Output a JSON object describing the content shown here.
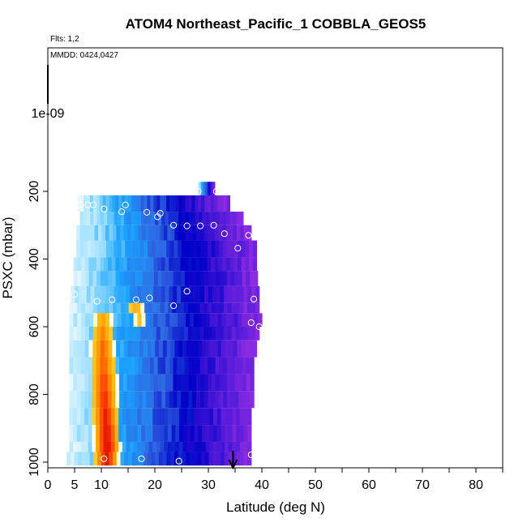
{
  "chart_data": {
    "type": "heatmap",
    "title": "ATOM4 Northeast_Pacific_1 COBBLA_GEOS5",
    "flights_note": "Flts: 1,2",
    "dates_note": "MMDD: 0424,0427",
    "xlabel": "Latitude (deg N)",
    "ylabel": "PSXC (mbar)",
    "xlim": [
      0,
      85
    ],
    "ylim": [
      1010,
      165
    ],
    "x_ticks": [
      0,
      5,
      10,
      20,
      30,
      40,
      50,
      60,
      70,
      80
    ],
    "y_ticks": [
      200,
      400,
      600,
      800,
      1000
    ],
    "y_tick_labels": [
      "200",
      "400",
      "600",
      "800",
      "1000"
    ],
    "top_tick_label": "1e-09",
    "arrow_latitude": 34.6,
    "colormap": [
      "#ffffff",
      "#9ee0ff",
      "#1aa3ff",
      "#2f64e0",
      "#0000c8",
      "#4b18d8",
      "#8a2be2"
    ],
    "hot_colormap": [
      "#ffe94d",
      "#ffa200",
      "#ff3b00",
      "#d40000"
    ],
    "rows": [
      {
        "p_top": 172,
        "p_bot": 212,
        "lat_start": 28.0,
        "lat_end": 31.2,
        "hot": []
      },
      {
        "p_top": 212,
        "p_bot": 260,
        "lat_start": 5.5,
        "lat_end": 34.0,
        "hot": []
      },
      {
        "p_top": 260,
        "p_bot": 300,
        "lat_start": 6.0,
        "lat_end": 36.5,
        "hot": []
      },
      {
        "p_top": 300,
        "p_bot": 345,
        "lat_start": 5.3,
        "lat_end": 38.0,
        "hot": []
      },
      {
        "p_top": 345,
        "p_bot": 395,
        "lat_start": 5.3,
        "lat_end": 39.0,
        "hot": []
      },
      {
        "p_top": 395,
        "p_bot": 435,
        "lat_start": 4.8,
        "lat_end": 39.0,
        "hot": []
      },
      {
        "p_top": 435,
        "p_bot": 480,
        "lat_start": 4.8,
        "lat_end": 39.2,
        "hot": []
      },
      {
        "p_top": 480,
        "p_bot": 530,
        "lat_start": 4.3,
        "lat_end": 39.5,
        "hot": []
      },
      {
        "p_top": 530,
        "p_bot": 560,
        "lat_start": 4.0,
        "lat_end": 39.5,
        "hot": [
          {
            "lat": 16.5,
            "w": 1.8,
            "v": 0.3
          }
        ]
      },
      {
        "p_top": 560,
        "p_bot": 600,
        "lat_start": 4.0,
        "lat_end": 40.0,
        "hot": [
          {
            "lat": 10.2,
            "w": 2.0,
            "v": 0.35
          },
          {
            "lat": 17.0,
            "w": 1.5,
            "v": 0.2
          }
        ]
      },
      {
        "p_top": 600,
        "p_bot": 640,
        "lat_start": 4.0,
        "lat_end": 39.5,
        "hot": [
          {
            "lat": 10.2,
            "w": 2.2,
            "v": 0.45
          }
        ]
      },
      {
        "p_top": 640,
        "p_bot": 690,
        "lat_start": 4.0,
        "lat_end": 39.0,
        "hot": [
          {
            "lat": 10.3,
            "w": 2.4,
            "v": 0.55
          }
        ]
      },
      {
        "p_top": 690,
        "p_bot": 740,
        "lat_start": 4.0,
        "lat_end": 38.5,
        "hot": [
          {
            "lat": 10.4,
            "w": 2.5,
            "v": 0.6
          }
        ]
      },
      {
        "p_top": 740,
        "p_bot": 790,
        "lat_start": 4.0,
        "lat_end": 38.5,
        "hot": [
          {
            "lat": 10.5,
            "w": 2.6,
            "v": 0.7
          }
        ]
      },
      {
        "p_top": 790,
        "p_bot": 840,
        "lat_start": 4.0,
        "lat_end": 38.5,
        "hot": [
          {
            "lat": 10.6,
            "w": 2.6,
            "v": 0.78
          }
        ]
      },
      {
        "p_top": 840,
        "p_bot": 890,
        "lat_start": 4.0,
        "lat_end": 38.0,
        "hot": [
          {
            "lat": 10.8,
            "w": 2.6,
            "v": 0.86
          }
        ]
      },
      {
        "p_top": 890,
        "p_bot": 940,
        "lat_start": 4.0,
        "lat_end": 38.0,
        "hot": [
          {
            "lat": 11.0,
            "w": 2.6,
            "v": 0.95
          }
        ]
      },
      {
        "p_top": 940,
        "p_bot": 970,
        "lat_start": 4.0,
        "lat_end": 38.0,
        "hot": [
          {
            "lat": 11.1,
            "w": 2.6,
            "v": 1.0
          }
        ]
      },
      {
        "p_top": 970,
        "p_bot": 1010,
        "lat_start": 3.5,
        "lat_end": 38.0,
        "hot": [
          {
            "lat": 11.0,
            "w": 2.5,
            "v": 0.9
          }
        ]
      }
    ],
    "sample_points": [
      {
        "lat": 28.1,
        "p": 200
      },
      {
        "lat": 31.5,
        "p": 200
      },
      {
        "lat": 6.0,
        "p": 240
      },
      {
        "lat": 7.5,
        "p": 240
      },
      {
        "lat": 8.5,
        "p": 240
      },
      {
        "lat": 14.5,
        "p": 240
      },
      {
        "lat": 10.5,
        "p": 252
      },
      {
        "lat": 13.8,
        "p": 260
      },
      {
        "lat": 18.5,
        "p": 262
      },
      {
        "lat": 21.0,
        "p": 265
      },
      {
        "lat": 20.5,
        "p": 275
      },
      {
        "lat": 23.5,
        "p": 300
      },
      {
        "lat": 26.0,
        "p": 302
      },
      {
        "lat": 28.5,
        "p": 302
      },
      {
        "lat": 31.0,
        "p": 300
      },
      {
        "lat": 33.0,
        "p": 325
      },
      {
        "lat": 37.5,
        "p": 330
      },
      {
        "lat": 39.5,
        "p": 330
      },
      {
        "lat": 35.5,
        "p": 368
      },
      {
        "lat": 5.0,
        "p": 505
      },
      {
        "lat": 26.0,
        "p": 495
      },
      {
        "lat": 38.5,
        "p": 518
      },
      {
        "lat": 0.0,
        "p": 525
      },
      {
        "lat": 9.2,
        "p": 525
      },
      {
        "lat": 12.0,
        "p": 520
      },
      {
        "lat": 16.5,
        "p": 520
      },
      {
        "lat": 19.0,
        "p": 515
      },
      {
        "lat": 23.5,
        "p": 538
      },
      {
        "lat": 38.0,
        "p": 588
      },
      {
        "lat": 39.5,
        "p": 600
      },
      {
        "lat": 10.5,
        "p": 990
      },
      {
        "lat": 17.5,
        "p": 990
      },
      {
        "lat": 24.5,
        "p": 997
      },
      {
        "lat": 38.0,
        "p": 978
      }
    ]
  }
}
